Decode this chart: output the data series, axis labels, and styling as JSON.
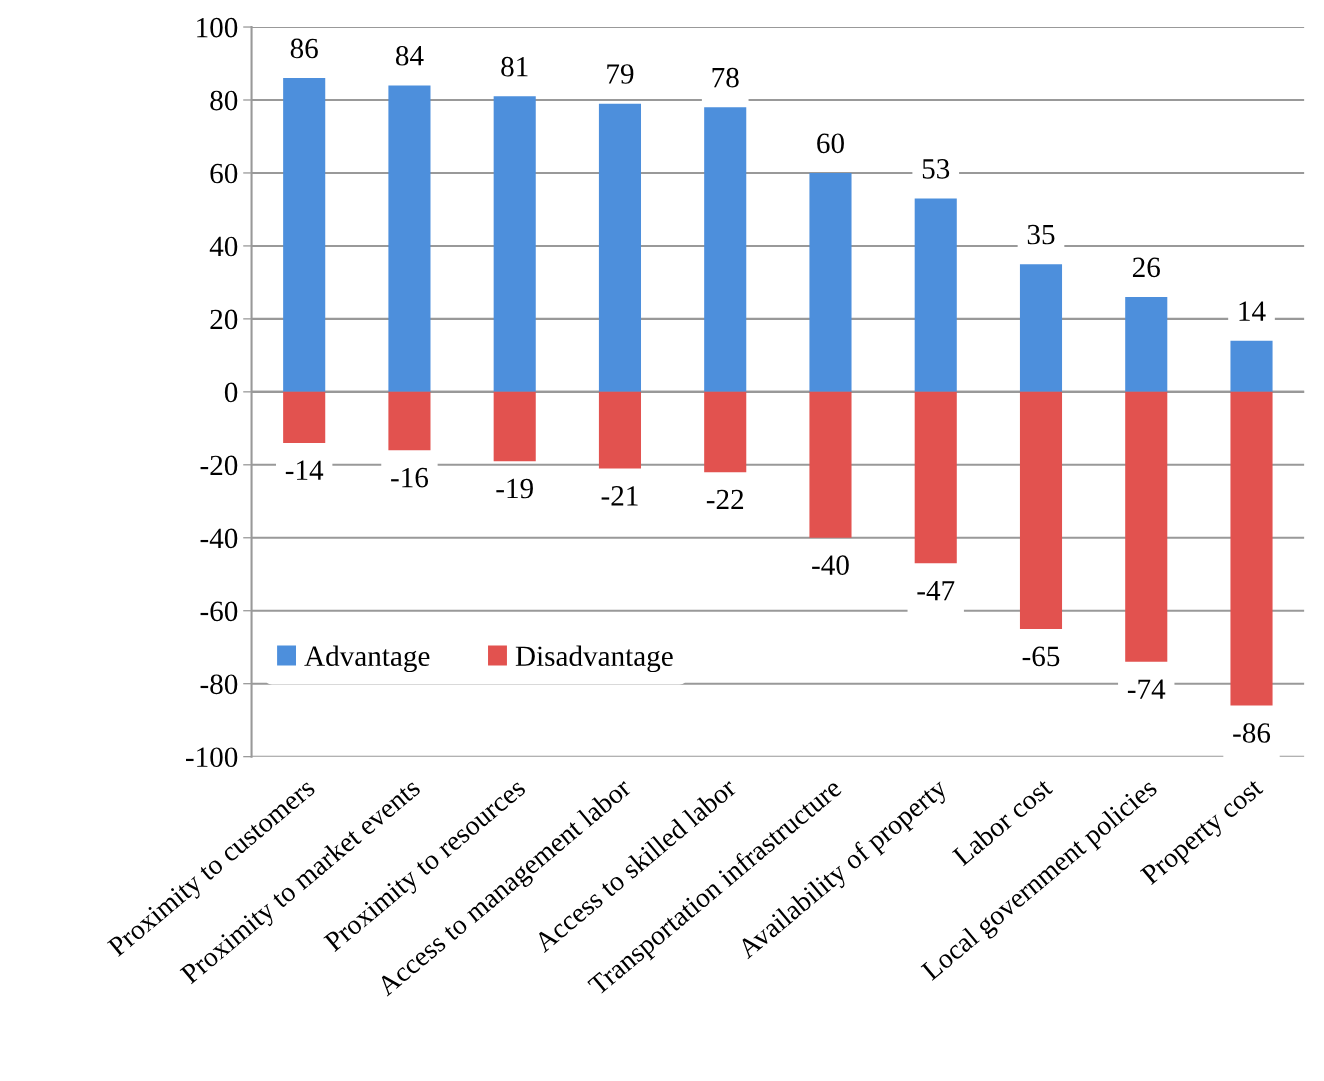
{
  "chart_data": {
    "type": "bar",
    "stacked": true,
    "categories": [
      "Proximity to customers",
      "Proximity to market events",
      "Proximity to resources",
      "Access to management labor",
      "Access to skilled labor",
      "Transportation infrastructure",
      "Availability of property",
      "Labor cost",
      "Local government policies",
      "Property cost"
    ],
    "series": [
      {
        "name": "Advantage",
        "color": "#4d8fdc",
        "values": [
          86,
          84,
          81,
          79,
          78,
          60,
          53,
          35,
          26,
          14
        ]
      },
      {
        "name": "Disadvantage",
        "color": "#e2524f",
        "values": [
          -14,
          -16,
          -19,
          -21,
          -22,
          -40,
          -47,
          -65,
          -74,
          -86
        ]
      }
    ],
    "ylim": [
      -100,
      100
    ],
    "yticks": [
      -100,
      -80,
      -60,
      -40,
      -20,
      0,
      20,
      40,
      60,
      80,
      100
    ],
    "grid": "y",
    "legend": "bottom left",
    "data_labels": true
  }
}
